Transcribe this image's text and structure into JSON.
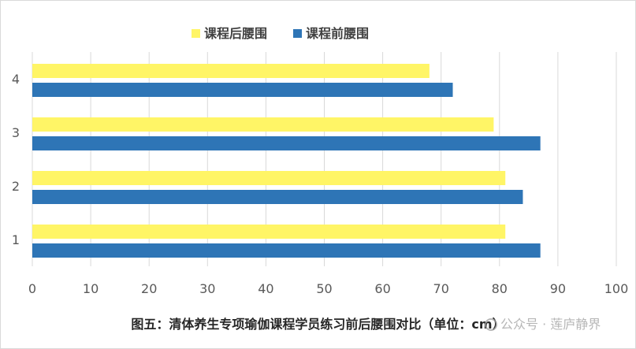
{
  "chart_data": {
    "type": "bar",
    "orientation": "horizontal",
    "categories": [
      "1",
      "2",
      "3",
      "4"
    ],
    "series": [
      {
        "name": "课程后腰围",
        "values": [
          81,
          81,
          79,
          68
        ]
      },
      {
        "name": "课程前腰围",
        "values": [
          87,
          84,
          87,
          72
        ]
      }
    ],
    "xlim": [
      0,
      100
    ],
    "xticks": [
      0,
      10,
      20,
      30,
      40,
      50,
      60,
      70,
      80,
      90,
      100
    ],
    "grid": "vertical",
    "legend_position": "top",
    "colors": {
      "after": "#fff566",
      "before": "#2e75b6",
      "grid": "#d9d9d9",
      "tick_text": "#595959"
    }
  },
  "caption": "图五：清体养生专项瑜伽课程学员练习前后腰围对比（单位：cm）",
  "watermark": "公众号 · 莲庐静界"
}
